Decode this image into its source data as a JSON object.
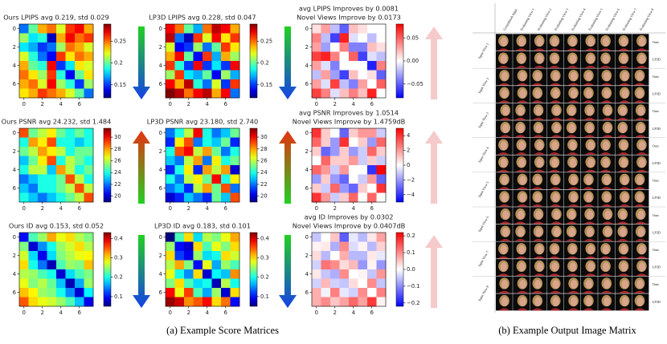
{
  "chart_data": [
    {
      "type": "heatmap",
      "title": "Ours LPIPS avg 0.219, std 0.029",
      "colormap": "jet",
      "clim": [
        0.12,
        0.29
      ],
      "cticks": [
        0.15,
        0.2,
        0.25
      ],
      "arrow": "down",
      "arrow_colors": [
        "#22d022",
        "#1540e8"
      ],
      "xlim": [
        -0.5,
        7.5
      ],
      "ylim": [
        7.5,
        -0.5
      ],
      "xticks": [
        0,
        2,
        4,
        6
      ],
      "yticks": [
        0,
        2,
        4,
        6
      ],
      "z": [
        [
          0.16,
          0.2,
          0.24,
          0.25,
          0.22,
          0.26,
          0.27,
          0.24
        ],
        [
          0.21,
          0.18,
          0.19,
          0.13,
          0.24,
          0.27,
          0.25,
          0.26
        ],
        [
          0.18,
          0.17,
          0.15,
          0.16,
          0.21,
          0.25,
          0.24,
          0.22
        ],
        [
          0.22,
          0.19,
          0.16,
          0.14,
          0.26,
          0.23,
          0.25,
          0.24
        ],
        [
          0.24,
          0.2,
          0.19,
          0.27,
          0.15,
          0.18,
          0.23,
          0.22
        ],
        [
          0.25,
          0.23,
          0.21,
          0.26,
          0.19,
          0.14,
          0.2,
          0.23
        ],
        [
          0.24,
          0.25,
          0.22,
          0.27,
          0.21,
          0.19,
          0.15,
          0.21
        ],
        [
          0.23,
          0.24,
          0.26,
          0.25,
          0.24,
          0.22,
          0.2,
          0.16
        ]
      ]
    },
    {
      "type": "heatmap",
      "title": "LP3D LPIPS avg 0.228, std 0.047",
      "colormap": "jet",
      "clim": [
        0.12,
        0.29
      ],
      "cticks": [
        0.15,
        0.2,
        0.25
      ],
      "arrow": "down",
      "arrow_colors": [
        "#22d022",
        "#1540e8"
      ],
      "xlim": [
        -0.5,
        7.5
      ],
      "ylim": [
        7.5,
        -0.5
      ],
      "xticks": [
        0,
        2,
        4,
        6
      ],
      "yticks": [
        0,
        2,
        4,
        6
      ],
      "z": [
        [
          0.27,
          0.25,
          0.2,
          0.17,
          0.25,
          0.28,
          0.27,
          0.24
        ],
        [
          0.28,
          0.16,
          0.13,
          0.26,
          0.22,
          0.27,
          0.23,
          0.26
        ],
        [
          0.22,
          0.14,
          0.15,
          0.21,
          0.16,
          0.2,
          0.26,
          0.23
        ],
        [
          0.24,
          0.27,
          0.2,
          0.14,
          0.26,
          0.17,
          0.24,
          0.21
        ],
        [
          0.26,
          0.19,
          0.15,
          0.27,
          0.15,
          0.18,
          0.15,
          0.27
        ],
        [
          0.21,
          0.26,
          0.18,
          0.17,
          0.2,
          0.14,
          0.21,
          0.17
        ],
        [
          0.27,
          0.24,
          0.28,
          0.19,
          0.16,
          0.22,
          0.15,
          0.26
        ],
        [
          0.29,
          0.28,
          0.25,
          0.27,
          0.28,
          0.24,
          0.27,
          0.16
        ]
      ]
    },
    {
      "type": "heatmap",
      "title": [
        "avg LPIPS Improves by 0.0081",
        "Novel Views Improve by 0.0173"
      ],
      "colormap": "bwr",
      "clim": [
        -0.08,
        0.08
      ],
      "cticks": [
        0.05,
        {
          "value": 0,
          "label": "0.00"
        },
        {
          "value": -0.05,
          "label": "−0.05"
        }
      ],
      "arrow": "up",
      "arrow_colors": [
        "#f6caca",
        "#f6caca"
      ],
      "xlim": [
        -0.5,
        7.5
      ],
      "ylim": [
        7.5,
        -0.5
      ],
      "xticks": [
        0,
        2,
        4,
        6
      ],
      "yticks": [
        0,
        2,
        4,
        6
      ],
      "z": [
        [
          0.01,
          0.03,
          -0.02,
          -0.05,
          0.02,
          0.01,
          0.0,
          0.0
        ],
        [
          0.04,
          -0.02,
          -0.06,
          0.07,
          -0.01,
          0.0,
          -0.02,
          0.0
        ],
        [
          0.03,
          -0.03,
          0.0,
          0.04,
          -0.04,
          -0.04,
          0.02,
          0.01
        ],
        [
          0.06,
          0.07,
          0.04,
          0.0,
          0.05,
          -0.06,
          -0.01,
          -0.02
        ],
        [
          0.03,
          -0.01,
          -0.04,
          0.0,
          0.0,
          0.0,
          -0.07,
          0.04
        ],
        [
          -0.02,
          0.03,
          -0.03,
          -0.06,
          0.02,
          0.0,
          0.01,
          -0.05
        ],
        [
          0.03,
          -0.01,
          0.06,
          -0.02,
          -0.04,
          0.03,
          0.0,
          0.05
        ],
        [
          0.06,
          0.04,
          -0.01,
          0.02,
          0.04,
          0.02,
          0.07,
          0.0
        ]
      ]
    },
    {
      "type": "heatmap",
      "title": "Ours PSNR avg 24.232, std 1.484",
      "colormap": "jet",
      "clim": [
        19,
        31.5
      ],
      "cticks": [
        20,
        22,
        24,
        26,
        28,
        30
      ],
      "arrow": "up",
      "arrow_colors": [
        "#22d022",
        "#e83010"
      ],
      "xlim": [
        -0.5,
        7.5
      ],
      "ylim": [
        7.5,
        -0.5
      ],
      "xticks": [
        0,
        2,
        4,
        6
      ],
      "yticks": [
        0,
        2,
        4,
        6
      ],
      "z": [
        [
          29,
          25,
          26,
          27,
          25,
          24,
          25,
          24
        ],
        [
          24,
          28,
          27,
          29,
          24,
          24,
          23,
          24
        ],
        [
          25,
          26,
          28,
          27,
          26,
          24,
          25,
          25
        ],
        [
          23,
          25,
          27,
          29,
          24,
          26,
          25,
          24
        ],
        [
          24,
          26,
          26,
          23,
          28,
          26,
          24,
          25
        ],
        [
          22,
          23,
          24,
          24,
          25,
          29,
          26,
          24
        ],
        [
          23,
          22,
          24,
          24,
          25,
          26,
          29,
          26
        ],
        [
          24,
          23,
          22,
          23,
          24,
          25,
          26,
          29
        ]
      ]
    },
    {
      "type": "heatmap",
      "title": "LP3D PSNR avg 23.180, std 2.740",
      "colormap": "jet",
      "clim": [
        19,
        31.5
      ],
      "cticks": [
        20,
        22,
        24,
        26,
        28,
        30
      ],
      "arrow": "up",
      "arrow_colors": [
        "#22d022",
        "#e83010"
      ],
      "xlim": [
        -0.5,
        7.5
      ],
      "ylim": [
        7.5,
        -0.5
      ],
      "xticks": [
        0,
        2,
        4,
        6
      ],
      "yticks": [
        0,
        2,
        4,
        6
      ],
      "z": [
        [
          22,
          24,
          26,
          30,
          24,
          22,
          23,
          25
        ],
        [
          21,
          27,
          29,
          22,
          24,
          23,
          25,
          21
        ],
        [
          24,
          29,
          30,
          26,
          28,
          25,
          22,
          24
        ],
        [
          23,
          22,
          26,
          28,
          22,
          27,
          24,
          25
        ],
        [
          21,
          24,
          27,
          21,
          28,
          26,
          28,
          20
        ],
        [
          24,
          22,
          26,
          27,
          25,
          30,
          24,
          27
        ],
        [
          22,
          23,
          21,
          26,
          28,
          25,
          29,
          22
        ],
        [
          20,
          21,
          23,
          22,
          21,
          25,
          23,
          29
        ]
      ]
    },
    {
      "type": "heatmap",
      "title": [
        "avg PSNR Improves by 1.0514",
        "Novel Views Improve by 1.4759dB"
      ],
      "colormap": "bwr",
      "clim": [
        -5,
        5
      ],
      "cticks": [
        4,
        2,
        0,
        {
          "value": -2,
          "label": "−2"
        },
        {
          "value": -4,
          "label": "−4"
        }
      ],
      "arrow": "up",
      "arrow_colors": [
        "#f6caca",
        "#f6caca"
      ],
      "xlim": [
        -0.5,
        7.5
      ],
      "ylim": [
        7.5,
        -0.5
      ],
      "xticks": [
        0,
        2,
        4,
        6
      ],
      "yticks": [
        0,
        2,
        4,
        6
      ],
      "z": [
        [
          4,
          1,
          0,
          -3,
          1,
          2,
          2,
          -1
        ],
        [
          3,
          1,
          -2,
          4,
          0,
          1,
          -2,
          3
        ],
        [
          1,
          -3,
          -2,
          1,
          -2,
          -1,
          3,
          1
        ],
        [
          0,
          3,
          1,
          1,
          2,
          -1,
          1,
          -1
        ],
        [
          3,
          2,
          -1,
          2,
          0,
          0,
          -4,
          5
        ],
        [
          -2,
          1,
          -2,
          -3,
          0,
          -1,
          2,
          -3
        ],
        [
          1,
          -1,
          3,
          -2,
          -3,
          1,
          0,
          4
        ],
        [
          4,
          2,
          -1,
          1,
          3,
          0,
          3,
          0
        ]
      ]
    },
    {
      "type": "heatmap",
      "title": "Ours ID avg 0.153, std 0.052",
      "colormap": "jet",
      "clim": [
        0.05,
        0.43
      ],
      "cticks": [
        0.1,
        0.2,
        0.3,
        0.4
      ],
      "arrow": "down",
      "arrow_colors": [
        "#22d022",
        "#1540e8"
      ],
      "xlim": [
        -0.5,
        7.5
      ],
      "ylim": [
        7.5,
        -0.5
      ],
      "xticks": [
        0,
        2,
        4,
        6
      ],
      "yticks": [
        0,
        2,
        4,
        6
      ],
      "z": [
        [
          0.1,
          0.22,
          0.25,
          0.32,
          0.28,
          0.3,
          0.26,
          0.24
        ],
        [
          0.24,
          0.08,
          0.15,
          0.2,
          0.25,
          0.27,
          0.3,
          0.26
        ],
        [
          0.27,
          0.18,
          0.09,
          0.18,
          0.24,
          0.26,
          0.28,
          0.29
        ],
        [
          0.3,
          0.2,
          0.14,
          0.07,
          0.22,
          0.25,
          0.24,
          0.31
        ],
        [
          0.26,
          0.25,
          0.22,
          0.2,
          0.08,
          0.18,
          0.22,
          0.24
        ],
        [
          0.28,
          0.24,
          0.26,
          0.23,
          0.17,
          0.07,
          0.16,
          0.25
        ],
        [
          0.31,
          0.29,
          0.25,
          0.24,
          0.2,
          0.15,
          0.08,
          0.19
        ],
        [
          0.35,
          0.3,
          0.28,
          0.27,
          0.25,
          0.22,
          0.17,
          0.09
        ]
      ]
    },
    {
      "type": "heatmap",
      "title": "LP3D ID avg 0.183, std 0.101",
      "colormap": "jet",
      "clim": [
        0.05,
        0.43
      ],
      "cticks": [
        0.1,
        0.2,
        0.3,
        0.4
      ],
      "arrow": "down",
      "arrow_colors": [
        "#22d022",
        "#1540e8"
      ],
      "xlim": [
        -0.5,
        7.5
      ],
      "ylim": [
        7.5,
        -0.5
      ],
      "xticks": [
        0,
        2,
        4,
        6
      ],
      "yticks": [
        0,
        2,
        4,
        6
      ],
      "z": [
        [
          0.05,
          0.22,
          0.3,
          0.18,
          0.26,
          0.24,
          0.28,
          0.32
        ],
        [
          0.25,
          0.1,
          0.08,
          0.3,
          0.22,
          0.28,
          0.24,
          0.3
        ],
        [
          0.3,
          0.12,
          0.09,
          0.25,
          0.18,
          0.2,
          0.3,
          0.27
        ],
        [
          0.26,
          0.32,
          0.24,
          0.1,
          0.28,
          0.16,
          0.25,
          0.22
        ],
        [
          0.28,
          0.2,
          0.15,
          0.3,
          0.08,
          0.19,
          0.17,
          0.33
        ],
        [
          0.24,
          0.3,
          0.22,
          0.18,
          0.2,
          0.07,
          0.26,
          0.2
        ],
        [
          0.38,
          0.28,
          0.36,
          0.22,
          0.16,
          0.25,
          0.08,
          0.3
        ],
        [
          0.42,
          0.4,
          0.33,
          0.35,
          0.38,
          0.3,
          0.34,
          0.1
        ]
      ]
    },
    {
      "type": "heatmap",
      "title": [
        "avg ID Improves by 0.0302",
        "Novel Views Improve by 0.0407dB"
      ],
      "colormap": "bwr",
      "clim": [
        -0.22,
        0.22
      ],
      "cticks": [
        0.2,
        0.1,
        {
          "value": 0,
          "label": "0.0"
        },
        {
          "value": -0.1,
          "label": "−0.1"
        },
        {
          "value": -0.2,
          "label": "−0.2"
        }
      ],
      "arrow": "up",
      "arrow_colors": [
        "#f6caca",
        "#f6caca"
      ],
      "xlim": [
        -0.5,
        7.5
      ],
      "ylim": [
        7.5,
        -0.5
      ],
      "xticks": [
        0,
        2,
        4,
        6
      ],
      "yticks": [
        0,
        2,
        4,
        6
      ],
      "z": [
        [
          -0.05,
          0.0,
          0.05,
          -0.14,
          -0.02,
          -0.06,
          0.02,
          0.08
        ],
        [
          0.01,
          0.02,
          -0.07,
          0.1,
          -0.03,
          0.01,
          -0.06,
          0.04
        ],
        [
          0.03,
          -0.06,
          0.0,
          0.07,
          -0.06,
          -0.06,
          0.02,
          -0.02
        ],
        [
          -0.04,
          0.12,
          0.1,
          0.03,
          0.06,
          -0.09,
          0.01,
          -0.09
        ],
        [
          0.02,
          -0.05,
          -0.07,
          0.1,
          0.0,
          0.01,
          -0.05,
          0.09
        ],
        [
          -0.04,
          0.06,
          -0.04,
          -0.05,
          0.03,
          0.0,
          0.1,
          -0.05
        ],
        [
          0.07,
          -0.01,
          0.11,
          -0.02,
          -0.04,
          0.1,
          0.0,
          0.11
        ],
        [
          0.07,
          0.1,
          0.05,
          0.08,
          0.13,
          0.08,
          0.17,
          0.01
        ]
      ]
    }
  ],
  "image_matrix": {
    "columns": [
      "Groundtruth Input",
      "Evaluating View 1",
      "Evaluating View 2",
      "Evaluating View 3",
      "Evaluating View 4",
      "Evaluating View 5",
      "Evaluating View 6",
      "Evaluating View 7",
      "Evaluating View 8"
    ],
    "input_views": [
      "Input View 1",
      "Input View 2",
      "Input View 3",
      "Input View 4",
      "Input View 5",
      "Input View 6",
      "Input View 7",
      "Input View 8"
    ],
    "methods": [
      "Ours",
      "LP3D"
    ]
  },
  "captions": [
    "(a) Example Score Matrices",
    "(b) Example Output Image Matrix"
  ]
}
